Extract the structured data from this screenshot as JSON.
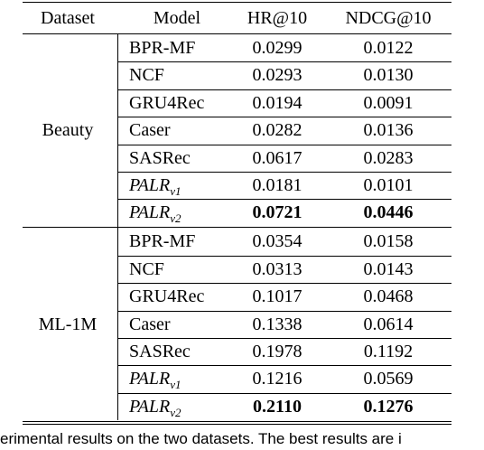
{
  "table": {
    "header": [
      "Dataset",
      "Model",
      "HR@10",
      "NDCG@10"
    ],
    "groups": [
      {
        "dataset": "Beauty",
        "rows": [
          {
            "model": "BPR-MF",
            "hr": "0.0299",
            "ndcg": "0.0122"
          },
          {
            "model": "NCF",
            "hr": "0.0293",
            "ndcg": "0.0130"
          },
          {
            "model": "GRU4Rec",
            "hr": "0.0194",
            "ndcg": "0.0091"
          },
          {
            "model": "Caser",
            "hr": "0.0282",
            "ndcg": "0.0136"
          },
          {
            "model": "SASRec",
            "hr": "0.0617",
            "ndcg": "0.0283"
          },
          {
            "model": "PALR",
            "model_sub": "v1",
            "hr": "0.0181",
            "ndcg": "0.0101"
          },
          {
            "model": "PALR",
            "model_sub": "v2",
            "hr": "0.0721",
            "ndcg": "0.0446",
            "best": true
          }
        ]
      },
      {
        "dataset": "ML-1M",
        "rows": [
          {
            "model": "BPR-MF",
            "hr": "0.0354",
            "ndcg": "0.0158"
          },
          {
            "model": "NCF",
            "hr": "0.0313",
            "ndcg": "0.0143"
          },
          {
            "model": "GRU4Rec",
            "hr": "0.1017",
            "ndcg": "0.0468"
          },
          {
            "model": "Caser",
            "hr": "0.1338",
            "ndcg": "0.0614"
          },
          {
            "model": "SASRec",
            "hr": "0.1978",
            "ndcg": "0.1192"
          },
          {
            "model": "PALR",
            "model_sub": "v1",
            "hr": "0.1216",
            "ndcg": "0.0569"
          },
          {
            "model": "PALR",
            "model_sub": "v2",
            "hr": "0.2110",
            "ndcg": "0.1276",
            "best": true
          }
        ]
      }
    ]
  },
  "caption": "erimental results on the two datasets. The best results are i"
}
